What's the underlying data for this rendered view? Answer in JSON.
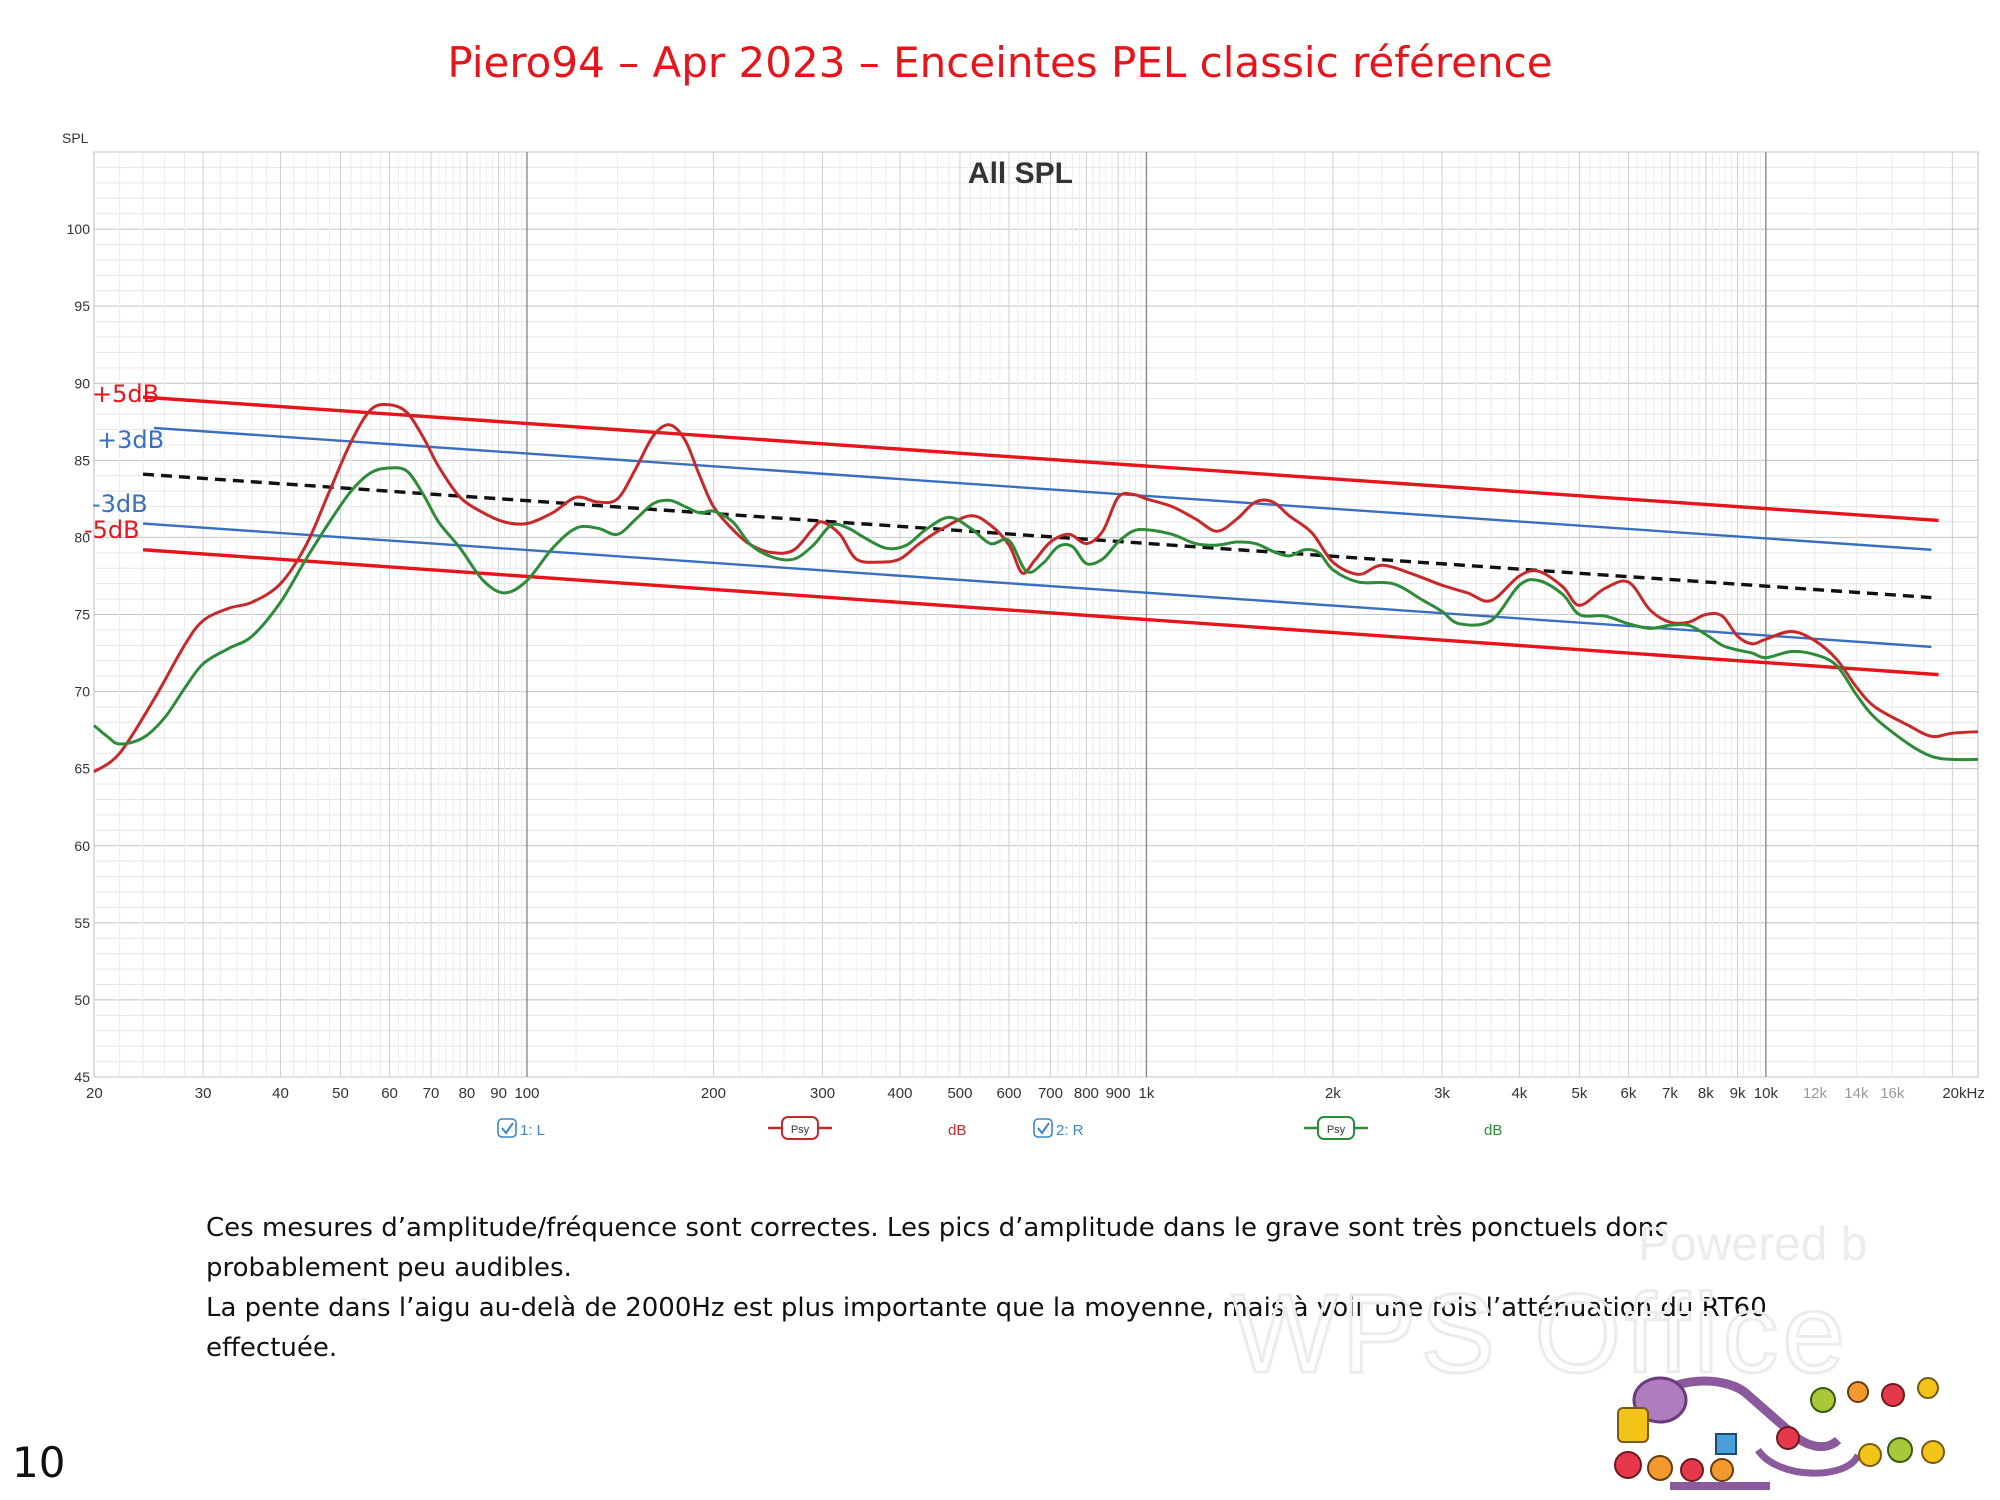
{
  "slide": {
    "title": "Piero94 – Apr 2023 – Enceintes PEL classic référence",
    "page_number": "10",
    "caption_lines": [
      "Ces mesures d’amplitude/fréquence sont correctes. Les pics d’amplitude dans le grave sont très ponctuels donc",
      "probablement  peu audibles.",
      "La pente dans l’aigu au-delà de 2000Hz est plus importante que la moyenne, mais à voir une fois l’atténuation du RT60",
      "effectuée."
    ],
    "watermark": {
      "line1": "Powered by",
      "line2": "WPS Office"
    }
  },
  "chart_data": {
    "type": "line",
    "title": "All SPL",
    "ylabel": "SPL",
    "xlabel": "",
    "x_scale": "log",
    "xlim": [
      20,
      22000
    ],
    "ylim": [
      45,
      105
    ],
    "grid": true,
    "y_ticks": [
      45,
      50,
      55,
      60,
      65,
      70,
      75,
      80,
      85,
      90,
      95,
      100
    ],
    "x_ticks": [
      {
        "value": 20,
        "label": "20",
        "major": false
      },
      {
        "value": 30,
        "label": "30",
        "major": false
      },
      {
        "value": 40,
        "label": "40",
        "major": false
      },
      {
        "value": 50,
        "label": "50",
        "major": false
      },
      {
        "value": 60,
        "label": "60",
        "major": false
      },
      {
        "value": 70,
        "label": "70",
        "major": false
      },
      {
        "value": 80,
        "label": "80",
        "major": false
      },
      {
        "value": 90,
        "label": "90",
        "major": false
      },
      {
        "value": 100,
        "label": "100",
        "major": true
      },
      {
        "value": 200,
        "label": "200",
        "major": false
      },
      {
        "value": 300,
        "label": "300",
        "major": false
      },
      {
        "value": 400,
        "label": "400",
        "major": false
      },
      {
        "value": 500,
        "label": "500",
        "major": false
      },
      {
        "value": 600,
        "label": "600",
        "major": false
      },
      {
        "value": 700,
        "label": "700",
        "major": false
      },
      {
        "value": 800,
        "label": "800",
        "major": false
      },
      {
        "value": 900,
        "label": "900",
        "major": false
      },
      {
        "value": 1000,
        "label": "1k",
        "major": true
      },
      {
        "value": 2000,
        "label": "2k",
        "major": false
      },
      {
        "value": 3000,
        "label": "3k",
        "major": false
      },
      {
        "value": 4000,
        "label": "4k",
        "major": false
      },
      {
        "value": 5000,
        "label": "5k",
        "major": false
      },
      {
        "value": 6000,
        "label": "6k",
        "major": false
      },
      {
        "value": 7000,
        "label": "7k",
        "major": false
      },
      {
        "value": 8000,
        "label": "8k",
        "major": false
      },
      {
        "value": 9000,
        "label": "9k",
        "major": false
      },
      {
        "value": 10000,
        "label": "10k",
        "major": true
      },
      {
        "value": 12000,
        "label": "12k",
        "major": false,
        "faded": true
      },
      {
        "value": 14000,
        "label": "14k",
        "major": false,
        "faded": true
      },
      {
        "value": 16000,
        "label": "16k",
        "major": false,
        "faded": true
      },
      {
        "value": 20000,
        "label": "20kHz",
        "major": false
      }
    ],
    "series": [
      {
        "name": "1: L",
        "color": "#c8282a",
        "points": [
          [
            20,
            64.8
          ],
          [
            22,
            66
          ],
          [
            25,
            69.5
          ],
          [
            28,
            73
          ],
          [
            30,
            74.6
          ],
          [
            33,
            75.4
          ],
          [
            36,
            75.8
          ],
          [
            40,
            77
          ],
          [
            44,
            79.5
          ],
          [
            48,
            83
          ],
          [
            52,
            86.2
          ],
          [
            56,
            88.3
          ],
          [
            60,
            88.6
          ],
          [
            64,
            88.1
          ],
          [
            68,
            86.5
          ],
          [
            72,
            84.6
          ],
          [
            78,
            82.6
          ],
          [
            85,
            81.6
          ],
          [
            92,
            81
          ],
          [
            100,
            80.9
          ],
          [
            110,
            81.6
          ],
          [
            120,
            82.6
          ],
          [
            130,
            82.3
          ],
          [
            140,
            82.5
          ],
          [
            150,
            84.5
          ],
          [
            160,
            86.6
          ],
          [
            170,
            87.3
          ],
          [
            180,
            86.3
          ],
          [
            190,
            84
          ],
          [
            200,
            82
          ],
          [
            215,
            80.5
          ],
          [
            230,
            79.5
          ],
          [
            250,
            79
          ],
          [
            270,
            79.2
          ],
          [
            290,
            80.6
          ],
          [
            300,
            81
          ],
          [
            320,
            80.2
          ],
          [
            340,
            78.6
          ],
          [
            370,
            78.4
          ],
          [
            400,
            78.6
          ],
          [
            430,
            79.6
          ],
          [
            470,
            80.6
          ],
          [
            520,
            81.4
          ],
          [
            560,
            80.8
          ],
          [
            600,
            79.5
          ],
          [
            630,
            77.7
          ],
          [
            660,
            78.5
          ],
          [
            700,
            79.7
          ],
          [
            750,
            80.2
          ],
          [
            800,
            79.6
          ],
          [
            850,
            80.4
          ],
          [
            900,
            82.6
          ],
          [
            950,
            82.8
          ],
          [
            1000,
            82.5
          ],
          [
            1100,
            82
          ],
          [
            1200,
            81.2
          ],
          [
            1300,
            80.4
          ],
          [
            1400,
            81.2
          ],
          [
            1500,
            82.3
          ],
          [
            1600,
            82.3
          ],
          [
            1700,
            81.4
          ],
          [
            1850,
            80.3
          ],
          [
            2000,
            78.4
          ],
          [
            2200,
            77.6
          ],
          [
            2400,
            78.2
          ],
          [
            2700,
            77.6
          ],
          [
            3000,
            76.9
          ],
          [
            3300,
            76.4
          ],
          [
            3600,
            75.9
          ],
          [
            4000,
            77.5
          ],
          [
            4300,
            77.8
          ],
          [
            4700,
            76.8
          ],
          [
            5000,
            75.6
          ],
          [
            5500,
            76.7
          ],
          [
            6000,
            77.1
          ],
          [
            6500,
            75.3
          ],
          [
            7000,
            74.5
          ],
          [
            7500,
            74.5
          ],
          [
            8000,
            75
          ],
          [
            8500,
            74.9
          ],
          [
            9000,
            73.6
          ],
          [
            9500,
            73.1
          ],
          [
            10000,
            73.4
          ],
          [
            11000,
            73.9
          ],
          [
            12000,
            73.3
          ],
          [
            13000,
            72.1
          ],
          [
            14000,
            70.3
          ],
          [
            15000,
            69
          ],
          [
            17000,
            67.8
          ],
          [
            18500,
            67.1
          ],
          [
            20000,
            67.3
          ],
          [
            22000,
            67.4
          ]
        ]
      },
      {
        "name": "2: R",
        "color": "#2e8b3a",
        "points": [
          [
            20,
            67.8
          ],
          [
            21,
            67.1
          ],
          [
            22,
            66.6
          ],
          [
            24,
            67
          ],
          [
            26,
            68.3
          ],
          [
            28,
            70.2
          ],
          [
            30,
            71.8
          ],
          [
            33,
            72.8
          ],
          [
            36,
            73.6
          ],
          [
            40,
            75.8
          ],
          [
            44,
            78.6
          ],
          [
            48,
            81
          ],
          [
            52,
            83
          ],
          [
            56,
            84.2
          ],
          [
            60,
            84.5
          ],
          [
            64,
            84.3
          ],
          [
            68,
            82.8
          ],
          [
            72,
            81
          ],
          [
            78,
            79.3
          ],
          [
            85,
            77.2
          ],
          [
            92,
            76.4
          ],
          [
            100,
            77.2
          ],
          [
            110,
            79.3
          ],
          [
            120,
            80.6
          ],
          [
            130,
            80.6
          ],
          [
            140,
            80.2
          ],
          [
            150,
            81.2
          ],
          [
            160,
            82.2
          ],
          [
            170,
            82.4
          ],
          [
            180,
            82
          ],
          [
            190,
            81.6
          ],
          [
            200,
            81.7
          ],
          [
            215,
            81
          ],
          [
            230,
            79.5
          ],
          [
            250,
            78.7
          ],
          [
            270,
            78.6
          ],
          [
            290,
            79.5
          ],
          [
            310,
            80.8
          ],
          [
            330,
            80.6
          ],
          [
            350,
            80
          ],
          [
            380,
            79.3
          ],
          [
            410,
            79.5
          ],
          [
            440,
            80.5
          ],
          [
            480,
            81.3
          ],
          [
            520,
            80.6
          ],
          [
            560,
            79.6
          ],
          [
            600,
            79.8
          ],
          [
            640,
            77.8
          ],
          [
            680,
            78.3
          ],
          [
            720,
            79.4
          ],
          [
            760,
            79.4
          ],
          [
            800,
            78.3
          ],
          [
            850,
            78.6
          ],
          [
            900,
            79.7
          ],
          [
            950,
            80.4
          ],
          [
            1000,
            80.5
          ],
          [
            1100,
            80.2
          ],
          [
            1200,
            79.6
          ],
          [
            1300,
            79.5
          ],
          [
            1400,
            79.7
          ],
          [
            1500,
            79.6
          ],
          [
            1600,
            79.1
          ],
          [
            1700,
            78.8
          ],
          [
            1800,
            79.2
          ],
          [
            1900,
            79
          ],
          [
            2000,
            77.9
          ],
          [
            2200,
            77.1
          ],
          [
            2500,
            77
          ],
          [
            2800,
            75.9
          ],
          [
            3000,
            75.2
          ],
          [
            3200,
            74.4
          ],
          [
            3600,
            74.6
          ],
          [
            4000,
            76.9
          ],
          [
            4300,
            77.2
          ],
          [
            4700,
            76.3
          ],
          [
            5000,
            75
          ],
          [
            5500,
            74.9
          ],
          [
            6000,
            74.4
          ],
          [
            6500,
            74.1
          ],
          [
            7000,
            74.3
          ],
          [
            7500,
            74.3
          ],
          [
            8000,
            73.7
          ],
          [
            8500,
            73
          ],
          [
            9000,
            72.7
          ],
          [
            9500,
            72.5
          ],
          [
            10000,
            72.2
          ],
          [
            11000,
            72.6
          ],
          [
            12000,
            72.4
          ],
          [
            13000,
            71.7
          ],
          [
            14000,
            69.8
          ],
          [
            15000,
            68.3
          ],
          [
            17000,
            66.6
          ],
          [
            18500,
            65.8
          ],
          [
            20000,
            65.6
          ],
          [
            22000,
            65.6
          ]
        ]
      }
    ],
    "reference_lines": [
      {
        "name": "+5dB",
        "color": "#e8141c",
        "from": [
          24,
          89.1
        ],
        "to": [
          19000,
          81.1
        ]
      },
      {
        "name": "+3dB",
        "color": "#3a6fc0",
        "from": [
          25,
          87.1
        ],
        "to": [
          18500,
          79.2
        ]
      },
      {
        "name": "",
        "color": "#111111",
        "style": "dashed",
        "from": [
          24,
          84.1
        ],
        "to": [
          18500,
          76.1
        ]
      },
      {
        "name": "-3dB",
        "color": "#3a6fc0",
        "from": [
          24,
          80.9
        ],
        "to": [
          18500,
          72.9
        ]
      },
      {
        "name": "-5dB",
        "color": "#e8141c",
        "from": [
          24,
          79.2
        ],
        "to": [
          19000,
          71.1
        ]
      }
    ],
    "legend": {
      "placement": "bottom",
      "items": [
        {
          "label": "1: L",
          "psy": "Psy",
          "unit": "dB",
          "color": "#c8282a"
        },
        {
          "label": "2: R",
          "psy": "Psy",
          "unit": "dB",
          "color": "#2e8b3a"
        }
      ]
    }
  }
}
